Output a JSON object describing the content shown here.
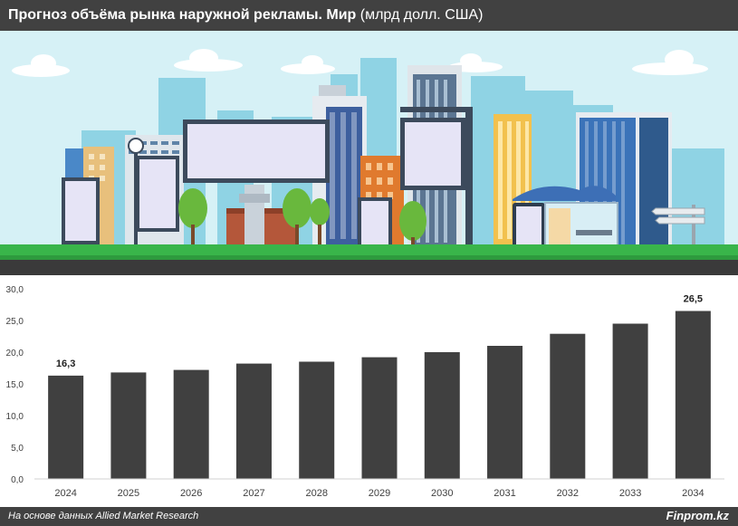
{
  "header": {
    "title_bold": "Прогноз объёма рынка наружной рекламы. Мир",
    "title_unit": "(млрд долл. США)"
  },
  "footer": {
    "source": "На основе данных Allied Market Research",
    "brand": "Finprom.kz"
  },
  "colors": {
    "header_bg": "#414141",
    "bar": "#404040",
    "sky": "#d6f1f6",
    "grass": "#39b54a",
    "road": "#3a3a3a"
  },
  "chart_data": {
    "type": "bar",
    "categories": [
      "2024",
      "2025",
      "2026",
      "2027",
      "2028",
      "2029",
      "2030",
      "2031",
      "2032",
      "2033",
      "2034"
    ],
    "values": [
      16.3,
      16.8,
      17.2,
      18.2,
      18.5,
      19.2,
      20.0,
      21.0,
      22.9,
      24.5,
      26.5
    ],
    "data_labels": [
      {
        "index": 0,
        "text": "16,3"
      },
      {
        "index": 10,
        "text": "26,5"
      }
    ],
    "ylim": [
      0,
      30
    ],
    "yticks": [
      "0,0",
      "5,0",
      "10,0",
      "15,0",
      "20,0",
      "25,0",
      "30,0"
    ],
    "grid": false
  }
}
